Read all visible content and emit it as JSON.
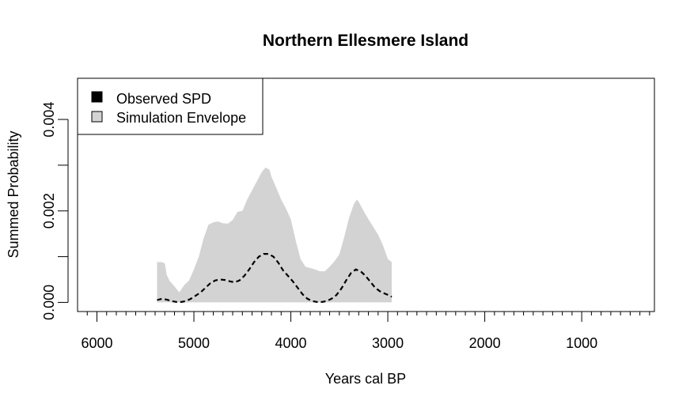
{
  "chart_data": {
    "type": "area",
    "title": "Northern Ellesmere Island",
    "xlabel": "Years cal BP",
    "ylabel": "Summed Probability",
    "x_reversed": true,
    "xlim": [
      6200,
      250
    ],
    "ylim": [
      -0.0002,
      0.0049
    ],
    "x_ticks": [
      6000,
      5000,
      4000,
      3000,
      2000,
      1000
    ],
    "x_tick_labels": [
      "6000",
      "5000",
      "4000",
      "3000",
      "2000",
      "1000"
    ],
    "y_ticks": [
      0.0,
      0.001,
      0.002,
      0.003,
      0.004
    ],
    "y_tick_labels": [
      "0.000",
      "",
      "0.002",
      "",
      "0.004"
    ],
    "legend": {
      "placement": "top-left",
      "entries": [
        {
          "label": "Observed SPD",
          "color": "#000000"
        },
        {
          "label": "Simulation Envelope",
          "color": "#d3d3d3"
        }
      ]
    },
    "series": [
      {
        "name": "Simulation Envelope",
        "color": "#d3d3d3",
        "x": [
          5380,
          5330,
          5300,
          5280,
          5250,
          5200,
          5150,
          5100,
          5050,
          5000,
          4950,
          4900,
          4850,
          4800,
          4750,
          4700,
          4650,
          4600,
          4550,
          4500,
          4450,
          4400,
          4350,
          4300,
          4260,
          4220,
          4200,
          4150,
          4100,
          4050,
          4000,
          3950,
          3900,
          3850,
          3800,
          3750,
          3700,
          3650,
          3600,
          3550,
          3500,
          3450,
          3400,
          3350,
          3320,
          3300,
          3250,
          3200,
          3150,
          3100,
          3050,
          3000,
          2960
        ],
        "upper": [
          0.00088,
          0.00088,
          0.00085,
          0.0006,
          0.00047,
          0.00035,
          0.00022,
          0.00038,
          0.00048,
          0.00072,
          0.001,
          0.0014,
          0.0017,
          0.00175,
          0.00177,
          0.00173,
          0.00172,
          0.0018,
          0.00198,
          0.002,
          0.00225,
          0.00245,
          0.00265,
          0.00285,
          0.00295,
          0.0029,
          0.00275,
          0.0025,
          0.00225,
          0.00205,
          0.00182,
          0.00135,
          0.00095,
          0.00078,
          0.00075,
          0.00072,
          0.00068,
          0.00068,
          0.00078,
          0.0009,
          0.00105,
          0.00142,
          0.00185,
          0.00215,
          0.00225,
          0.0022,
          0.002,
          0.00182,
          0.00165,
          0.00148,
          0.00125,
          0.00095,
          0.00088
        ],
        "lower": [
          0,
          0,
          0,
          0,
          0,
          0,
          0,
          0,
          0,
          0,
          0,
          0,
          0,
          0,
          0,
          0,
          0,
          0,
          0,
          0,
          0,
          0,
          0,
          0,
          0,
          0,
          0,
          0,
          0,
          0,
          0,
          0,
          0,
          0,
          0,
          0,
          0,
          0,
          0,
          0,
          0,
          0,
          0,
          0,
          0,
          0,
          0,
          0,
          0,
          0,
          0,
          0,
          0
        ]
      },
      {
        "name": "Observed SPD",
        "color": "#000000",
        "style": "dashed",
        "x": [
          5380,
          5330,
          5280,
          5230,
          5180,
          5130,
          5080,
          5030,
          4980,
          4930,
          4880,
          4830,
          4780,
          4730,
          4680,
          4630,
          4580,
          4530,
          4480,
          4430,
          4380,
          4330,
          4280,
          4230,
          4180,
          4130,
          4080,
          4030,
          3980,
          3930,
          3880,
          3830,
          3780,
          3730,
          3680,
          3630,
          3580,
          3530,
          3480,
          3430,
          3380,
          3330,
          3280,
          3230,
          3180,
          3130,
          3080,
          3030,
          2980,
          2960
        ],
        "values": [
          5e-05,
          8e-05,
          6e-05,
          3e-05,
          1e-05,
          1e-05,
          3e-05,
          8e-05,
          0.00015,
          0.00022,
          0.00032,
          0.00042,
          0.00048,
          0.0005,
          0.00049,
          0.00046,
          0.00044,
          0.00048,
          0.00058,
          0.00072,
          0.00088,
          0.001,
          0.00106,
          0.00106,
          0.001,
          0.00087,
          0.0007,
          0.00058,
          0.00046,
          0.00032,
          0.00018,
          8e-05,
          3e-05,
          1e-05,
          1e-05,
          3e-05,
          8e-05,
          0.00016,
          0.0003,
          0.00048,
          0.00064,
          0.00072,
          0.00068,
          0.00058,
          0.00045,
          0.00032,
          0.00024,
          0.00019,
          0.00015,
          0.00012
        ]
      }
    ]
  }
}
